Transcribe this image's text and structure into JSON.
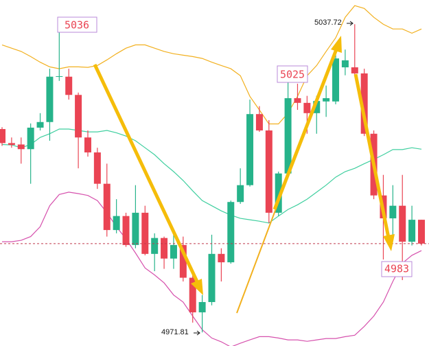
{
  "chart_data": {
    "type": "candlestick",
    "open": [
      5015.3,
      5012.3,
      5012.0,
      5011.0,
      5015.6,
      5016.8,
      5026.5,
      5026.5,
      5022.6,
      5013.5,
      5010.3,
      5003.6,
      4993.7,
      4996.7,
      4990.5,
      4997.4,
      4988.6,
      4992.0,
      4987.6,
      4990.5,
      4983.5,
      4976.1,
      4978.3,
      4988.6,
      4986.8,
      4999.7,
      5003.3,
      5018.5,
      5015.0,
      4997.4,
      5005.8,
      5021.9,
      5020.9,
      5018.7,
      5021.2,
      5021.2,
      5028.5,
      5028.5,
      5027.2,
      5014.3,
      5001.1,
      4996.2,
      4998.9,
      4991.2,
      4995.9
    ],
    "high": [
      5015.7,
      5013.5,
      5013.5,
      5016.5,
      5018.7,
      5028.2,
      5036,
      5028.2,
      5023.1,
      5015.0,
      5011.3,
      5007.9,
      5000.3,
      4997.4,
      5003.3,
      4998.9,
      4993.0,
      4992.3,
      4993.0,
      4992.3,
      4984.9,
      4979.8,
      4992.7,
      4989.8,
      5000.0,
      5006.9,
      5021.6,
      5020.2,
      5017.2,
      5006.2,
      5025.3,
      5025,
      5022.4,
      5022.4,
      5024.6,
      5031.2,
      5032.3,
      5037.72,
      5028.2,
      5015.0,
      5005.5,
      5003.3,
      5005.5,
      4998.9,
      4995.9
    ],
    "low": [
      5011.7,
      5011.3,
      5007.9,
      5003.6,
      5015.0,
      5012.8,
      5025.6,
      5021.6,
      5006.9,
      5009.4,
      5002.5,
      4992.3,
      4993.0,
      4990.1,
      4989.8,
      4988.3,
      4984.9,
      4985.4,
      4985.4,
      4982.7,
      4973.9,
      4971.81,
      4977.6,
      4982.7,
      4986.5,
      4999.3,
      5003.0,
      5014.7,
      4995.2,
      4996.7,
      5005.5,
      5019.4,
      5014.3,
      5014.3,
      5017.9,
      5020.6,
      5026.8,
      5026.8,
      5013.8,
      5000.3,
      4987.4,
      4992.3,
      4983,
      4990.4,
      4990.4
    ],
    "close": [
      5012.3,
      5011.9,
      5011.0,
      5015.6,
      5016.8,
      5026.5,
      5026.6,
      5022.6,
      5013.5,
      5010.3,
      5003.6,
      4993.7,
      4996.7,
      4990.5,
      4997.4,
      4988.6,
      4992.0,
      4987.6,
      4990.5,
      4983.5,
      4976.1,
      4978.3,
      4988.6,
      4986.8,
      4999.7,
      5003.3,
      5018.5,
      5015.0,
      4997.4,
      5005.8,
      5021.9,
      5020.9,
      5018.7,
      5021.3,
      5021.9,
      5030.4,
      5030.0,
      5027.2,
      5014.3,
      5001.1,
      4996.2,
      4998.9,
      4991.2,
      4995.9,
      4990.8
    ],
    "up_color": "#26b38a",
    "down_color": "#ea4453",
    "overlays": [
      {
        "color": "#f2b01e",
        "values": [
          5033.3,
          5032.6,
          5031.9,
          5030.8,
          5029.6,
          5028.6,
          5028.2,
          5028.6,
          5028.6,
          5028.5,
          5028.9,
          5030.1,
          5031.4,
          5032.6,
          5033.3,
          5033.3,
          5032.6,
          5031.9,
          5031.4,
          5031.1,
          5030.8,
          5030.4,
          5029.6,
          5028.9,
          5028.2,
          5026.7,
          5022.3,
          5019.4,
          5016.4,
          5016.4,
          5018.7,
          5022.3,
          5026.7,
          5028.9,
          5031.9,
          5034.8,
          5039.2,
          5041.7,
          5041.1,
          5039.2,
          5037.7,
          5036.7,
          5036.7,
          5035.8,
          5036.7
        ]
      },
      {
        "color": "#3fcf9f",
        "values": [
          5012.0,
          5011.9,
          5011.3,
          5012.0,
          5013.5,
          5014.3,
          5015.3,
          5015.3,
          5015.0,
          5014.7,
          5014.7,
          5015.0,
          5014.5,
          5013.8,
          5012.8,
          5011.3,
          5009.8,
          5007.9,
          5006.2,
          5004.3,
          5002.1,
          5000.0,
          4998.9,
          4997.8,
          4996.9,
          4996.2,
          4995.9,
          4995.6,
          4995.2,
          4996.7,
          4998.1,
          4999.1,
          5000.3,
          5001.8,
          5003.3,
          5005.0,
          5006.2,
          5006.9,
          5007.9,
          5008.8,
          5009.8,
          5010.9,
          5010.9,
          5011.3,
          5011.0
        ]
      },
      {
        "color": "#d651ad",
        "values": [
          4991.2,
          4991.2,
          4991.5,
          4992.3,
          4994.4,
          4998.9,
          5001.3,
          5001.8,
          5001.5,
          5001.1,
          5000.0,
          4997.4,
          4994.4,
          4991.8,
          4988.8,
          4985.6,
          4984.1,
          4982.4,
          4979.8,
          4978.3,
          4975.3,
          4972.4,
          4970.6,
          4969.8,
          4968.7,
          4969.5,
          4970.2,
          4970.9,
          4970.9,
          4970.6,
          4970.2,
          4970.2,
          4969.9,
          4970.2,
          4970.5,
          4970.5,
          4970.9,
          4971.2,
          4973.1,
          4975.3,
          4978.3,
          4982.7,
          4986.6,
          4988.3,
          4989.3
        ]
      }
    ],
    "ylim": [
      4968.9,
      5042.9
    ]
  }
}
